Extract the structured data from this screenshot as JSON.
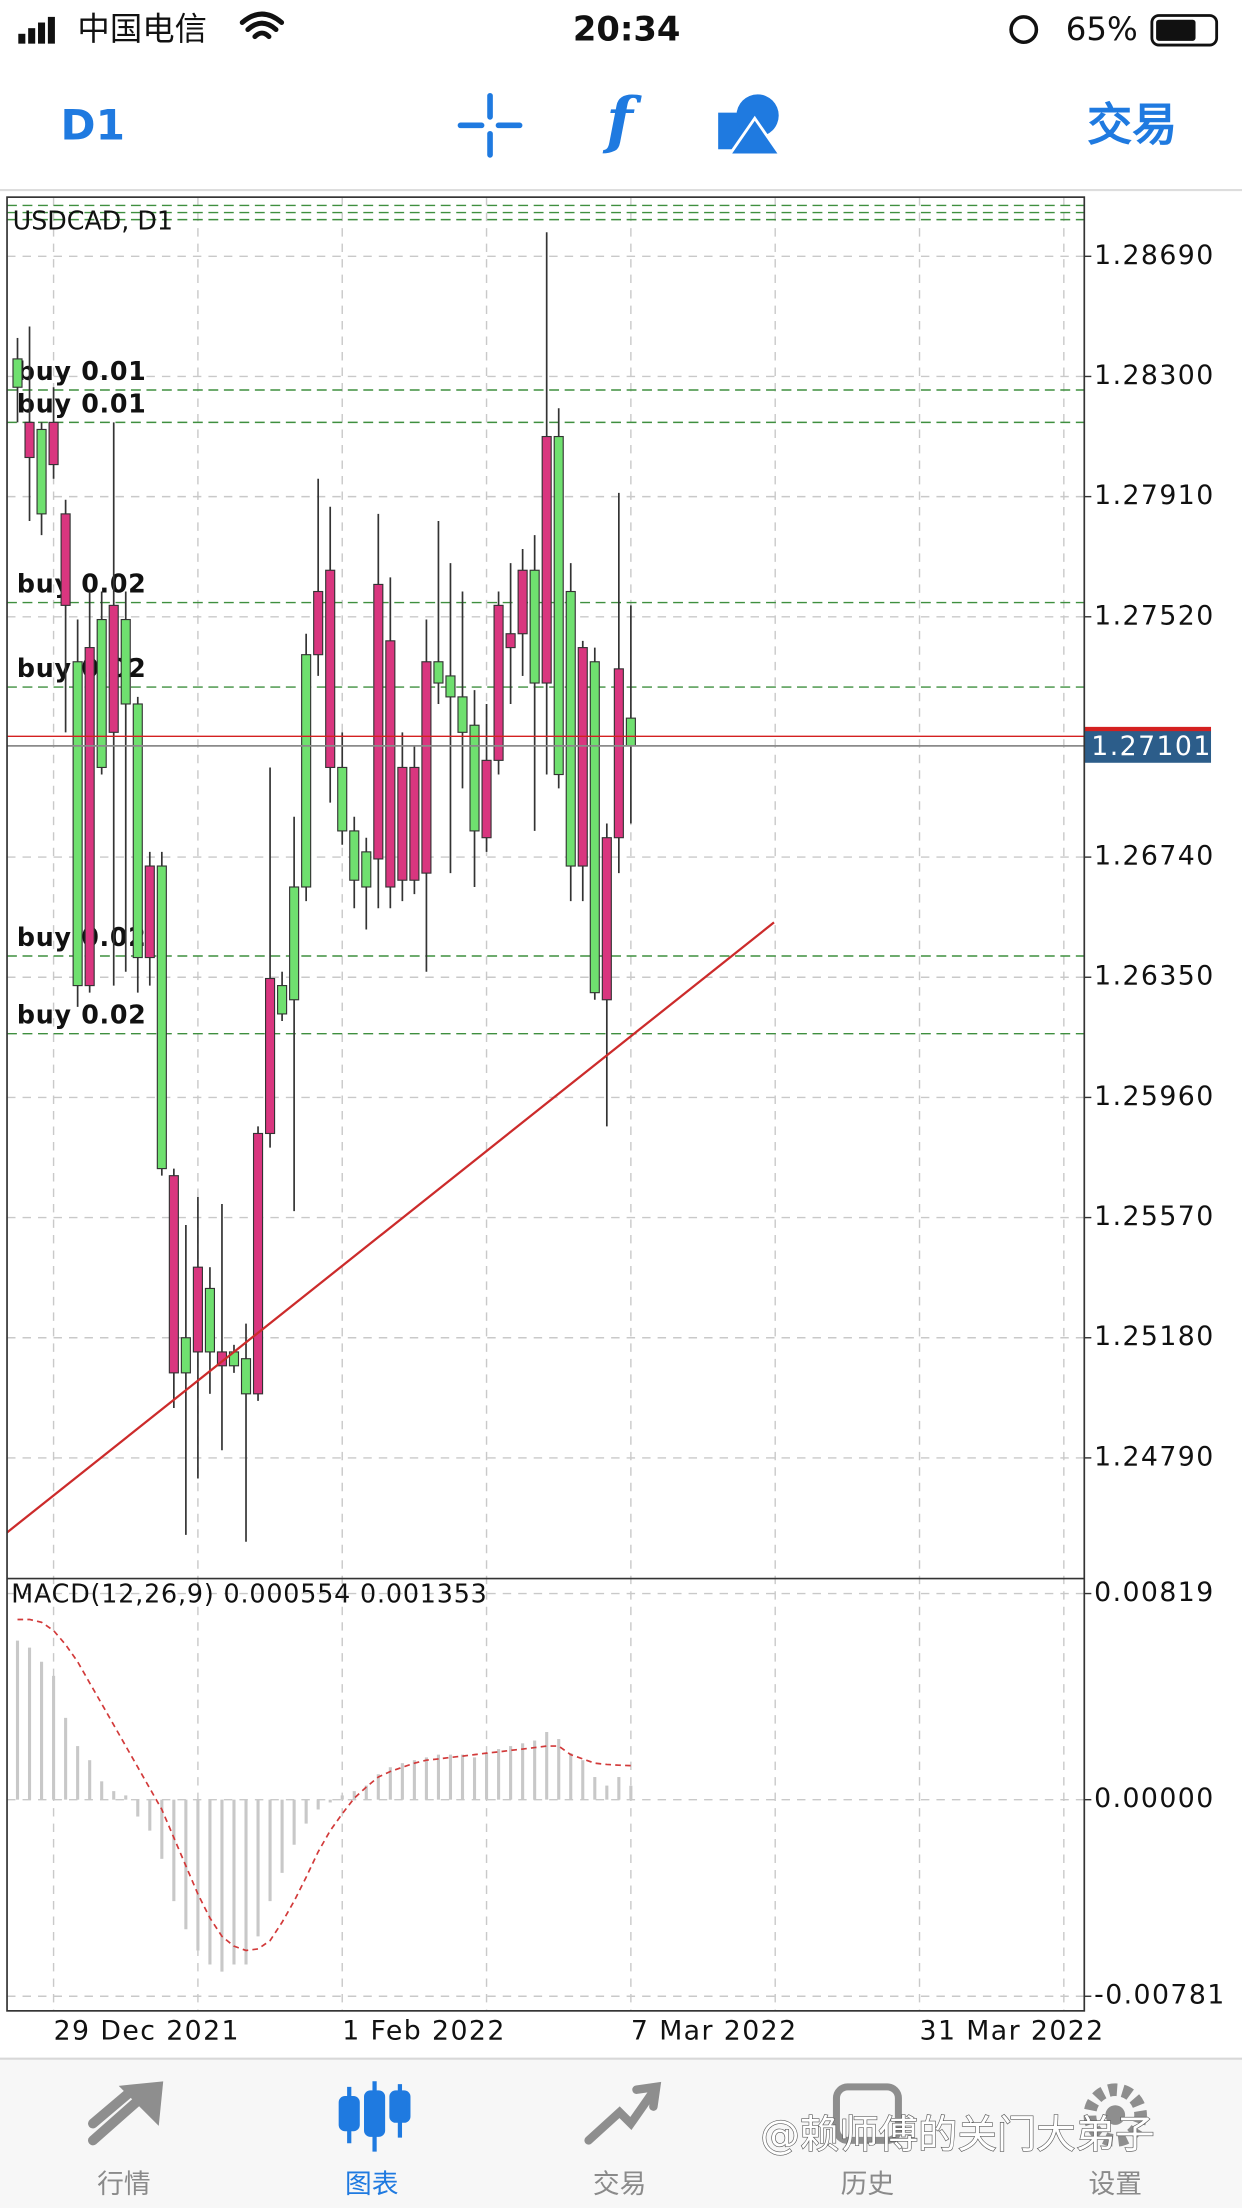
{
  "status_bar": {
    "carrier": "中国电信",
    "time": "20:34",
    "battery": "65%"
  },
  "toolbar": {
    "timeframe": "D1",
    "function": "f",
    "trade": "交易"
  },
  "chart_data": {
    "type": "candlestick",
    "title": "USDCAD, D1",
    "xlim": [
      -0.87,
      88.7
    ],
    "xticks": [
      {
        "value": 3,
        "label": "29 Dec 2021"
      },
      {
        "value": 15,
        "label": null
      },
      {
        "value": 27,
        "label": "1 Feb 2022"
      },
      {
        "value": 39,
        "label": null
      },
      {
        "value": 51,
        "label": "7 Mar 2022"
      },
      {
        "value": 63,
        "label": null
      },
      {
        "value": 75,
        "label": "31 Mar 2022"
      },
      {
        "value": 87,
        "label": null
      }
    ],
    "ylim": [
      1.24403,
      1.28882
    ],
    "yticks": [
      {
        "value": 1.2869,
        "label": "1.28690"
      },
      {
        "value": 1.283,
        "label": "1.28300"
      },
      {
        "value": 1.2791,
        "label": "1.27910"
      },
      {
        "value": 1.2752,
        "label": "1.27520"
      },
      {
        "value": 1.2674,
        "label": "1.26740"
      },
      {
        "value": 1.2635,
        "label": "1.26350"
      },
      {
        "value": 1.2596,
        "label": "1.25960"
      },
      {
        "value": 1.2557,
        "label": "1.25570"
      },
      {
        "value": 1.2518,
        "label": "1.25180"
      },
      {
        "value": 1.2479,
        "label": "1.24790"
      }
    ],
    "grid": true,
    "grid_color": "#c9c9c9",
    "up_color": "#d9367f",
    "down_color": "#6fe06f",
    "wick_color": "#333333",
    "open": [
      1.28357,
      1.28037,
      1.28128,
      1.28014,
      1.27557,
      1.27374,
      1.26323,
      1.27511,
      1.27145,
      1.27511,
      1.27237,
      1.26414,
      1.26711,
      1.25066,
      1.2518,
      1.25134,
      1.2534,
      1.25089,
      1.25134,
      1.25112,
      1.24998,
      1.25843,
      1.26323,
      1.26643,
      1.27397,
      1.27397,
      1.27031,
      1.27031,
      1.26825,
      1.26757,
      1.26734,
      1.26643,
      1.26665,
      1.26665,
      1.26688,
      1.27374,
      1.27328,
      1.2726,
      1.27168,
      1.26803,
      1.27054,
      1.2742,
      1.27465,
      1.27671,
      1.27305,
      1.28105,
      1.27602,
      1.26711,
      1.27374,
      1.26277,
      1.26803,
      1.27191
    ],
    "high": [
      1.28425,
      1.28462,
      1.28151,
      1.28265,
      1.279,
      1.27511,
      1.27602,
      1.27602,
      1.28151,
      1.27602,
      1.2726,
      1.26757,
      1.26757,
      1.25729,
      1.25546,
      1.25637,
      1.25409,
      1.25614,
      1.25157,
      1.25226,
      1.25866,
      1.27031,
      1.26368,
      1.26871,
      1.27465,
      1.27968,
      1.27877,
      1.27145,
      1.26871,
      1.26803,
      1.27854,
      1.27648,
      1.27145,
      1.271,
      1.27511,
      1.27831,
      1.27694,
      1.27602,
      1.27282,
      1.27237,
      1.27602,
      1.27694,
      1.2774,
      1.27785,
      1.28768,
      1.28197,
      1.27694,
      1.27442,
      1.2742,
      1.26849,
      1.27922,
      1.27557
    ],
    "low": [
      1.28151,
      1.27831,
      1.27785,
      1.27968,
      1.27145,
      1.26254,
      1.263,
      1.27008,
      1.26323,
      1.26368,
      1.263,
      1.26323,
      1.25706,
      1.24952,
      1.2454,
      1.24723,
      1.24998,
      1.24815,
      1.25066,
      1.24518,
      1.24975,
      1.25797,
      1.26208,
      1.25591,
      1.26597,
      1.27328,
      1.26917,
      1.2678,
      1.26574,
      1.26505,
      1.26574,
      1.26574,
      1.26597,
      1.2662,
      1.26368,
      1.27237,
      1.26688,
      1.26963,
      1.26643,
      1.26757,
      1.27008,
      1.27237,
      1.27328,
      1.26825,
      1.27008,
      1.26963,
      1.26597,
      1.26597,
      1.26277,
      1.25866,
      1.26688,
      1.26849
    ],
    "close": [
      1.28265,
      1.28151,
      1.27854,
      1.28151,
      1.27854,
      1.26323,
      1.2742,
      1.27031,
      1.27557,
      1.27237,
      1.26414,
      1.26711,
      1.25729,
      1.25706,
      1.25066,
      1.25409,
      1.25134,
      1.25134,
      1.25089,
      1.24998,
      1.25843,
      1.26346,
      1.26231,
      1.26277,
      1.26643,
      1.27602,
      1.27671,
      1.26825,
      1.26665,
      1.26643,
      1.27625,
      1.27442,
      1.27031,
      1.27031,
      1.27374,
      1.27305,
      1.2726,
      1.27145,
      1.26825,
      1.27054,
      1.27557,
      1.27465,
      1.27671,
      1.27305,
      1.28105,
      1.27008,
      1.26711,
      1.2742,
      1.263,
      1.26803,
      1.27351,
      1.27101
    ],
    "last_price_color": "#8a8a8a",
    "price_label_bg": "#2c5d8a",
    "ask_price": 1.27132,
    "ask_color": "#d42020",
    "level_color": "#3f8f3f",
    "levels": [
      1.28855,
      1.28832,
      1.28809
    ],
    "orders": [
      {
        "label": "buy 0.01",
        "price": 1.28256
      },
      {
        "label": "buy 0.01",
        "price": 1.28151
      },
      {
        "label": "buy 0.02",
        "price": 1.27566
      },
      {
        "label": "buy 0.02",
        "price": 1.27292
      },
      {
        "label": "buy 0.02",
        "price": 1.26419
      },
      {
        "label": "buy 0.02",
        "price": 1.26167
      }
    ],
    "trendline": {
      "color": "#cc2b2b",
      "x": [
        -0.87,
        62.9
      ],
      "y": [
        1.24548,
        1.26528
      ]
    },
    "macd": {
      "label": "MACD(12,26,9)",
      "ylim": [
        -0.00839,
        0.00873
      ],
      "yticks": [
        {
          "value": 0.00819,
          "label": "0.00819"
        },
        {
          "value": 0,
          "label": "0.00000"
        },
        {
          "value": -0.00781,
          "label": "-0.00781"
        }
      ],
      "histogram_color": "#c8c8c8",
      "signal_color": "#d23a3a",
      "histogram": [
        0.00632,
        0.00604,
        0.00548,
        0.00492,
        0.00325,
        0.00213,
        0.00157,
        0.00073,
        0.00034,
        0.00017,
        -0.00067,
        -0.00123,
        -0.00235,
        -0.00403,
        -0.00515,
        -0.00599,
        -0.00655,
        -0.00683,
        -0.00655,
        -0.00655,
        -0.00543,
        -0.00403,
        -0.00291,
        -0.00179,
        -0.00095,
        -0.00039,
        -0.00011,
        0.00017,
        0.00034,
        0.00056,
        0.00101,
        0.00129,
        0.00145,
        0.00157,
        0.00168,
        0.00179,
        0.00179,
        0.00179,
        0.00168,
        0.00185,
        0.00201,
        0.00213,
        0.00224,
        0.00235,
        0.00269,
        0.00241,
        0.00185,
        0.00157,
        0.0009,
        0.00056,
        0.0009,
        0.000554
      ],
      "signal": [
        0.00716,
        0.00716,
        0.00705,
        0.00672,
        0.00616,
        0.00548,
        0.00464,
        0.00381,
        0.00297,
        0.00213,
        0.00129,
        0.00045,
        -0.00039,
        -0.00151,
        -0.00263,
        -0.00375,
        -0.0047,
        -0.00543,
        -0.00582,
        -0.00599,
        -0.00593,
        -0.0056,
        -0.00487,
        -0.00403,
        -0.00308,
        -0.00207,
        -0.00123,
        -0.00056,
        6e-05,
        0.0005,
        0.0009,
        0.00112,
        0.00129,
        0.00145,
        0.00157,
        0.00162,
        0.00168,
        0.00173,
        0.00179,
        0.00185,
        0.0019,
        0.00196,
        0.00201,
        0.00207,
        0.00213,
        0.00213,
        0.00179,
        0.00162,
        0.00145,
        0.0014,
        0.00137,
        0.001353
      ]
    }
  },
  "tab_bar": {
    "tabs": [
      "行情",
      "图表",
      "交易",
      "历史",
      "设置"
    ]
  },
  "watermark": "@赖师傅的关门大弟子"
}
